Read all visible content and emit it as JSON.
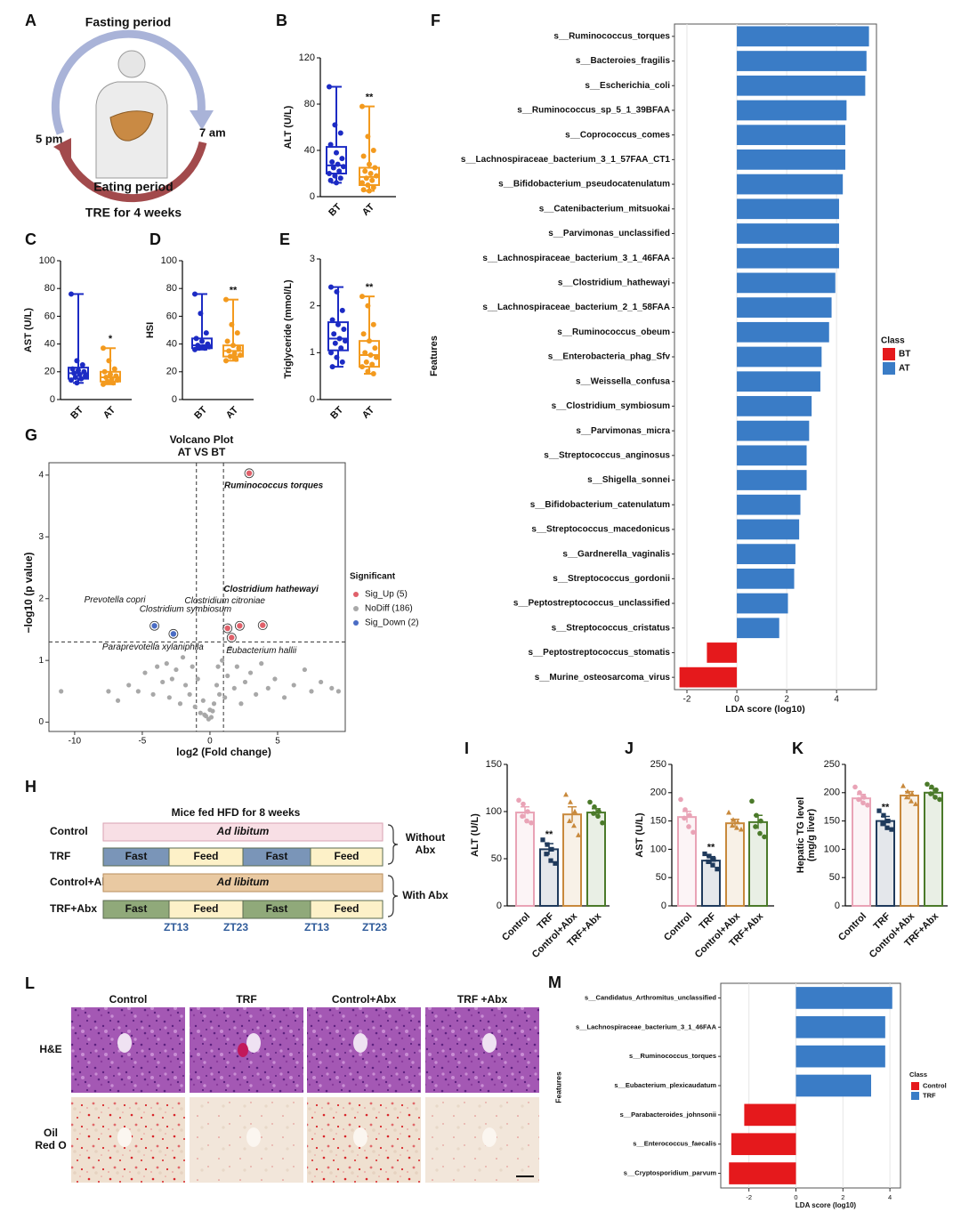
{
  "panel_a": {
    "label": "A",
    "top_text": "Fasting period",
    "right_time": "7 am",
    "left_time": "5 pm",
    "bottom_text": "Eating period",
    "caption": "TRE for 4 weeks"
  },
  "chart_data": [
    {
      "type": "box",
      "label": "B",
      "ylabel": "ALT (U/L)",
      "categories": [
        "BT",
        "AT"
      ],
      "colors": [
        "#1c2bc4",
        "#f39a1e"
      ],
      "ylim": [
        0,
        120
      ],
      "yticks": [
        0,
        40,
        80,
        120
      ],
      "boxes": [
        {
          "min": 12,
          "q1": 20,
          "median": 27,
          "q3": 43,
          "max": 95
        },
        {
          "min": 5,
          "q1": 10,
          "median": 17,
          "q3": 25,
          "max": 78
        }
      ],
      "points": [
        [
          95,
          62,
          55,
          45,
          38,
          33,
          30,
          28,
          26,
          25,
          22,
          20,
          18,
          16,
          14,
          12
        ],
        [
          78,
          52,
          40,
          35,
          28,
          25,
          22,
          20,
          18,
          16,
          14,
          12,
          10,
          8,
          6,
          5
        ]
      ],
      "significance": [
        null,
        "**"
      ]
    },
    {
      "type": "box",
      "label": "C",
      "ylabel": "AST (U/L)",
      "categories": [
        "BT",
        "AT"
      ],
      "colors": [
        "#1c2bc4",
        "#f39a1e"
      ],
      "ylim": [
        0,
        100
      ],
      "yticks": [
        0,
        20,
        40,
        60,
        80,
        100
      ],
      "boxes": [
        {
          "min": 12,
          "q1": 15,
          "median": 19,
          "q3": 23,
          "max": 76
        },
        {
          "min": 11,
          "q1": 13,
          "median": 16,
          "q3": 20,
          "max": 37
        }
      ],
      "points": [
        [
          76,
          28,
          25,
          22,
          21,
          20,
          19,
          18,
          17,
          16,
          15,
          14,
          12
        ],
        [
          37,
          28,
          22,
          20,
          18,
          17,
          16,
          15,
          14,
          13,
          12,
          11
        ]
      ],
      "significance": [
        null,
        "*"
      ]
    },
    {
      "type": "box",
      "label": "D",
      "ylabel": "HSI",
      "categories": [
        "BT",
        "AT"
      ],
      "colors": [
        "#1c2bc4",
        "#f39a1e"
      ],
      "ylim": [
        0,
        100
      ],
      "yticks": [
        0,
        20,
        40,
        60,
        80,
        100
      ],
      "boxes": [
        {
          "min": 36,
          "q1": 37,
          "median": 39,
          "q3": 44,
          "max": 76
        },
        {
          "min": 28,
          "q1": 31,
          "median": 35,
          "q3": 39,
          "max": 72
        }
      ],
      "points": [
        [
          76,
          62,
          48,
          44,
          42,
          40,
          39,
          38,
          38,
          37,
          37,
          36
        ],
        [
          72,
          54,
          48,
          42,
          39,
          37,
          35,
          33,
          32,
          31,
          29,
          28
        ]
      ],
      "significance": [
        null,
        "**"
      ]
    },
    {
      "type": "box",
      "label": "E",
      "ylabel": "Triglyceride (mmol/L)",
      "categories": [
        "BT",
        "AT"
      ],
      "colors": [
        "#1c2bc4",
        "#f39a1e"
      ],
      "ylim": [
        0,
        3
      ],
      "yticks": [
        0,
        1,
        2,
        3
      ],
      "boxes": [
        {
          "min": 0.7,
          "q1": 1.05,
          "median": 1.3,
          "q3": 1.65,
          "max": 2.4
        },
        {
          "min": 0.55,
          "q1": 0.7,
          "median": 0.95,
          "q3": 1.25,
          "max": 2.2
        }
      ],
      "points": [
        [
          2.4,
          2.3,
          1.9,
          1.7,
          1.6,
          1.5,
          1.4,
          1.3,
          1.25,
          1.2,
          1.1,
          1.0,
          0.9,
          0.8,
          0.7
        ],
        [
          2.2,
          2.0,
          1.6,
          1.4,
          1.25,
          1.1,
          1.0,
          0.95,
          0.9,
          0.8,
          0.75,
          0.7,
          0.6,
          0.55
        ]
      ],
      "significance": [
        null,
        "**"
      ]
    },
    {
      "type": "hbar",
      "label": "F",
      "xlabel": "LDA score (log10)",
      "ylabel": "Features",
      "categories": [
        "s__Ruminococcus_torques",
        "s__Bacteroies_fragilis",
        "s__Escherichia_coli",
        "s__Ruminococcus_sp_5_1_39BFAA",
        "s__Coprococcus_comes",
        "s__Lachnospiraceae_bacterium_3_1_57FAA_CT1",
        "s__Bifidobacterium_pseudocatenulatum",
        "s__Catenibacterium_mitsuokai",
        "s__Parvimonas_unclassified",
        "s__Lachnospiraceae_bacterium_3_1_46FAA",
        "s__Clostridium_hathewayi",
        "s__Lachnospiraceae_bacterium_2_1_58FAA",
        "s__Ruminococcus_obeum",
        "s__Enterobacteria_phag_Sfv",
        "s__Weissella_confusa",
        "s__Clostridium_symbiosum",
        "s__Parvimonas_micra",
        "s__Streptococcus_anginosus",
        "s__Shigella_sonnei",
        "s__Bifidobacterium_catenulatum",
        "s__Streptococcus_macedonicus",
        "s__Gardnerella_vaginalis",
        "s__Streptococcus_gordonii",
        "s__Peptostreptococcus_unclassified",
        "s__Streptococcus_cristatus",
        "s__Peptostreptococcus_stomatis",
        "s__Murine_osteosarcoma_virus"
      ],
      "values": [
        5.3,
        5.2,
        5.15,
        4.4,
        4.35,
        4.35,
        4.25,
        4.1,
        4.1,
        4.1,
        3.95,
        3.8,
        3.7,
        3.4,
        3.35,
        3.0,
        2.9,
        2.8,
        2.8,
        2.55,
        2.5,
        2.35,
        2.3,
        2.05,
        1.7,
        -1.2,
        -2.3
      ],
      "classes": [
        "AT",
        "AT",
        "AT",
        "AT",
        "AT",
        "AT",
        "AT",
        "AT",
        "AT",
        "AT",
        "AT",
        "AT",
        "AT",
        "AT",
        "AT",
        "AT",
        "AT",
        "AT",
        "AT",
        "AT",
        "AT",
        "AT",
        "AT",
        "AT",
        "AT",
        "BT",
        "BT"
      ],
      "legend": {
        "title": "Class",
        "items": [
          {
            "name": "BT",
            "color": "#e5191c"
          },
          {
            "name": "AT",
            "color": "#3a7cc6"
          }
        ]
      },
      "xlim": [
        -2.5,
        5.6
      ],
      "xticks": [
        -2,
        0,
        2,
        4
      ],
      "grid": true
    },
    {
      "type": "scatter",
      "label": "G",
      "title": "Volcano Plot",
      "subtitle": "AT VS BT",
      "xlabel": "log2 (Fold change)",
      "ylabel": "−log10 (p value)",
      "xlim": [
        -11.9,
        10
      ],
      "ylim": [
        -0.15,
        4.2
      ],
      "xticks": [
        -10,
        -5,
        0,
        5
      ],
      "yticks": [
        0,
        1,
        2,
        3,
        4
      ],
      "thresholds": {
        "x": [
          -1,
          1
        ],
        "y": 1.3
      },
      "legend_title": "Significant",
      "series": [
        {
          "name": "Sig_Up (5)",
          "color": "#e0606a",
          "x": [
            2.9,
            2.2,
            1.3,
            3.9,
            1.6
          ],
          "y": [
            4.03,
            1.56,
            1.52,
            1.57,
            1.37
          ],
          "labels": [
            {
              "text": "Ruminococcus torques",
              "color": "#c0141c"
            },
            {
              "text": "Clostridium citroniae",
              "color": "#222222"
            },
            {
              "text": "Clostridium symbiosum",
              "color": "#222222"
            },
            {
              "text": "Clostridium hathewayi",
              "color": "#c0141c"
            },
            {
              "text": "Eubacterium hallii",
              "color": "#222222"
            }
          ]
        },
        {
          "name": "NoDiff (186)",
          "color": "#a8a8a8",
          "x": [
            -11,
            -7.5,
            -6.8,
            -6,
            -5.3,
            -4.8,
            -4.2,
            -3.9,
            -3.5,
            -3.2,
            -3,
            -2.8,
            -2.5,
            -2.2,
            -2,
            -1.8,
            -1.5,
            -1.3,
            -1.1,
            -0.9,
            -0.7,
            -0.5,
            -0.3,
            -0.1,
            0,
            0.1,
            0.3,
            0.5,
            0.7,
            0.9,
            1.1,
            1.3,
            1.5,
            1.8,
            2,
            2.3,
            2.6,
            3,
            3.4,
            3.8,
            4.3,
            4.8,
            5.5,
            6.2,
            7,
            7.5,
            8.2,
            9,
            9.5,
            -0.4,
            0.2,
            0.6
          ],
          "y": [
            0.5,
            0.5,
            0.35,
            0.6,
            0.5,
            0.8,
            0.45,
            0.9,
            0.65,
            0.95,
            0.4,
            0.7,
            0.85,
            0.3,
            1.05,
            0.6,
            0.45,
            0.9,
            0.25,
            0.7,
            0.15,
            0.35,
            0.1,
            0.05,
            0.2,
            0.08,
            0.3,
            0.6,
            0.45,
            1.0,
            0.4,
            0.75,
            1.2,
            0.55,
            0.9,
            0.3,
            0.65,
            0.8,
            0.45,
            0.95,
            0.55,
            0.7,
            0.4,
            0.6,
            0.85,
            0.5,
            0.65,
            0.55,
            0.5,
            0.12,
            0.18,
            0.9
          ]
        },
        {
          "name": "Sig_Down (2)",
          "color": "#4a6cc4",
          "x": [
            -4.1,
            -2.7
          ],
          "y": [
            1.56,
            1.43
          ],
          "labels": [
            {
              "text": "Prevotella copri",
              "color": "#222222"
            },
            {
              "text": "Paraprevotella xylaniphila",
              "color": "#222222"
            }
          ]
        }
      ]
    },
    {
      "type": "bar",
      "label": "I",
      "ylabel": "ALT (U/L)",
      "categories": [
        "Control",
        "TRF",
        "Control+Abx",
        "TRF+Abx"
      ],
      "colors": [
        "#e9a3b6",
        "#1f3a5c",
        "#c8893c",
        "#4b7a2a"
      ],
      "markers": [
        "circle",
        "square",
        "triangle",
        "circle"
      ],
      "ylim": [
        0,
        150
      ],
      "yticks": [
        0,
        50,
        100,
        150
      ],
      "values": [
        99,
        60,
        97,
        99
      ],
      "errors": [
        6,
        6,
        8,
        4
      ],
      "points": [
        [
          112,
          108,
          100,
          95,
          90,
          88
        ],
        [
          70,
          65,
          60,
          55,
          48,
          45
        ],
        [
          118,
          110,
          100,
          90,
          85,
          75
        ],
        [
          110,
          105,
          100,
          98,
          95,
          88
        ]
      ],
      "significance": [
        null,
        "**",
        null,
        null
      ]
    },
    {
      "type": "bar",
      "label": "J",
      "ylabel": "AST (U/L)",
      "categories": [
        "Control",
        "TRF",
        "Control+Abx",
        "TRF+Abx"
      ],
      "colors": [
        "#e9a3b6",
        "#1f3a5c",
        "#c8893c",
        "#4b7a2a"
      ],
      "markers": [
        "circle",
        "square",
        "triangle",
        "circle"
      ],
      "ylim": [
        0,
        250
      ],
      "yticks": [
        0,
        50,
        100,
        150,
        200,
        250
      ],
      "values": [
        157,
        80,
        146,
        148
      ],
      "errors": [
        10,
        7,
        7,
        12
      ],
      "points": [
        [
          188,
          170,
          160,
          155,
          140,
          130
        ],
        [
          92,
          88,
          82,
          78,
          72,
          65
        ],
        [
          165,
          152,
          148,
          142,
          138,
          135
        ],
        [
          185,
          160,
          150,
          140,
          128,
          122
        ]
      ],
      "significance": [
        null,
        "**",
        null,
        null
      ]
    },
    {
      "type": "bar",
      "label": "K",
      "ylabel": [
        "Hepatic TG level",
        "(mg/g liver)"
      ],
      "categories": [
        "Control",
        "TRF",
        "Control+Abx",
        "TRF+Abx"
      ],
      "colors": [
        "#e9a3b6",
        "#1f3a5c",
        "#c8893c",
        "#4b7a2a"
      ],
      "markers": [
        "circle",
        "square",
        "triangle",
        "circle"
      ],
      "ylim": [
        0,
        250
      ],
      "yticks": [
        0,
        50,
        100,
        150,
        200,
        250
      ],
      "values": [
        190,
        150,
        195,
        200
      ],
      "errors": [
        7,
        8,
        7,
        7
      ],
      "points": [
        [
          210,
          200,
          192,
          188,
          182,
          178
        ],
        [
          168,
          160,
          150,
          145,
          138,
          135
        ],
        [
          212,
          202,
          198,
          192,
          185,
          180
        ],
        [
          215,
          210,
          205,
          198,
          192,
          188
        ]
      ],
      "significance": [
        null,
        "**",
        null,
        null
      ]
    },
    {
      "type": "hbar",
      "label": "M",
      "xlabel": "LDA score (log10)",
      "ylabel": "Features",
      "categories": [
        "s__Candidatus_Arthromitus_unclassified",
        "s__Lachnospiraceae_bacterium_3_1_46FAA",
        "s__Ruminococcus_torques",
        "s__Eubacterium_plexicaudatum",
        "s__Parabacteroides_johnsonii",
        "s__Enterococcus_faecalis",
        "s__Cryptosporidium_parvum"
      ],
      "values": [
        4.1,
        3.8,
        3.8,
        3.2,
        -2.2,
        -2.75,
        -2.85
      ],
      "classes": [
        "TRF",
        "TRF",
        "TRF",
        "TRF",
        "Control",
        "Control",
        "Control"
      ],
      "legend": {
        "title": "Class",
        "items": [
          {
            "name": "Control",
            "color": "#e5191c"
          },
          {
            "name": "TRF",
            "color": "#3a7cc6"
          }
        ]
      },
      "xlim": [
        -3.2,
        4.45
      ],
      "xticks": [
        -2,
        0,
        2,
        4
      ],
      "grid": true
    }
  ],
  "panel_h": {
    "label": "H",
    "title": "Mice fed HFD for 8 weeks",
    "rows": [
      {
        "name": "Control",
        "segments": [
          "Ad libitum"
        ]
      },
      {
        "name": "TRF",
        "segments": [
          "Fast",
          "Feed",
          "Fast",
          "Feed"
        ]
      },
      {
        "name": "Control+Abx",
        "segments": [
          "Ad libitum"
        ]
      },
      {
        "name": "TRF+Abx",
        "segments": [
          "Fast",
          "Feed",
          "Fast",
          "Feed"
        ]
      }
    ],
    "groups": [
      [
        "Without",
        "Abx"
      ],
      [
        "With Abx"
      ]
    ],
    "timepoints": [
      "ZT13",
      "ZT23",
      "ZT13",
      "ZT23"
    ]
  },
  "panel_l": {
    "label": "L",
    "columns": [
      "Control",
      "TRF",
      "Control+Abx",
      "TRF +Abx"
    ],
    "rows": [
      [
        "H&E"
      ],
      [
        "Oil",
        "Red O"
      ]
    ]
  }
}
